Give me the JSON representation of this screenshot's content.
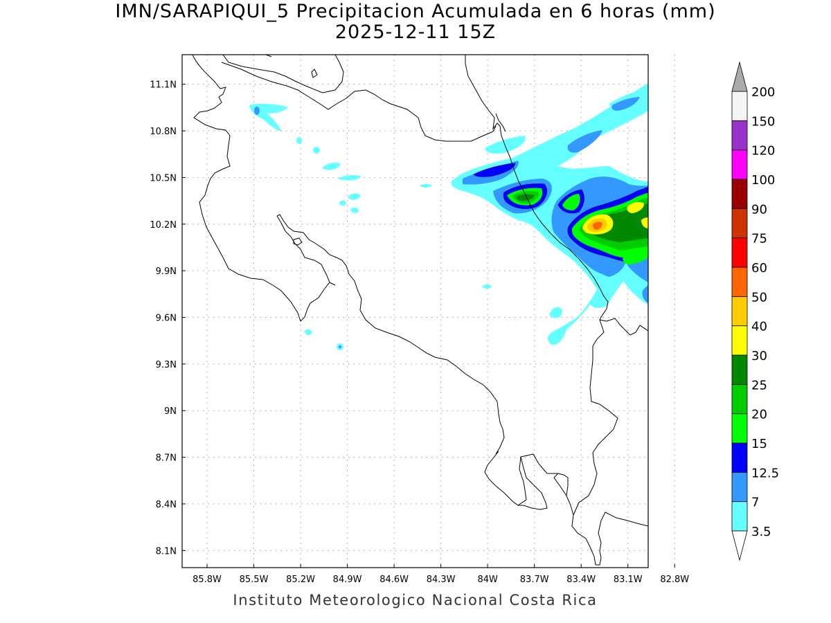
{
  "title": {
    "line1": "IMN/SARAPIQUI_5 Precipitacion Acumulada en 6 horas (mm)",
    "line2": "2025-12-11 15Z"
  },
  "credit": "Instituto Meteorologico Nacional Costa Rica",
  "axes": {
    "lon_ticks": [
      "85.8W",
      "85.5W",
      "85.2W",
      "84.9W",
      "84.6W",
      "84.3W",
      "84W",
      "83.7W",
      "83.4W",
      "83.1W",
      "82.8W"
    ],
    "lat_ticks": [
      "11.1N",
      "10.8N",
      "10.5N",
      "10.2N",
      "9.9N",
      "9.6N",
      "9.3N",
      "9N",
      "8.7N",
      "8.4N",
      "8.1N"
    ],
    "lon_values": [
      -85.8,
      -85.5,
      -85.2,
      -84.9,
      -84.6,
      -84.3,
      -84.0,
      -83.7,
      -83.4,
      -83.1,
      -82.8
    ],
    "lat_values": [
      11.1,
      10.8,
      10.5,
      10.2,
      9.9,
      9.6,
      9.3,
      9.0,
      8.7,
      8.4,
      8.1
    ],
    "lon_range": [
      -85.96,
      -82.97
    ],
    "lat_range": [
      7.99,
      11.29
    ],
    "grid": "dotted"
  },
  "colorbar": {
    "labels": [
      "3.5",
      "7",
      "12.5",
      "15",
      "20",
      "25",
      "30",
      "40",
      "50",
      "60",
      "75",
      "90",
      "100",
      "120",
      "150",
      "200"
    ],
    "colors": [
      "#ffffff",
      "#66ffff",
      "#3399ff",
      "#0000ff",
      "#00ff00",
      "#00cc00",
      "#008800",
      "#ffff00",
      "#ffcc00",
      "#ff6600",
      "#ff0000",
      "#cc3300",
      "#990000",
      "#ff00ff",
      "#9933cc",
      "#f5f5f5",
      "#aaaaaa"
    ],
    "extend": "both"
  },
  "precip_colors": {
    "c35": "#66ffff",
    "c7": "#3399ff",
    "c125": "#0000ff",
    "c15": "#00ff00",
    "c20": "#00cc00",
    "c25": "#008800",
    "c30": "#ffff00",
    "c40": "#ffcc00",
    "c60": "#ff6600"
  }
}
